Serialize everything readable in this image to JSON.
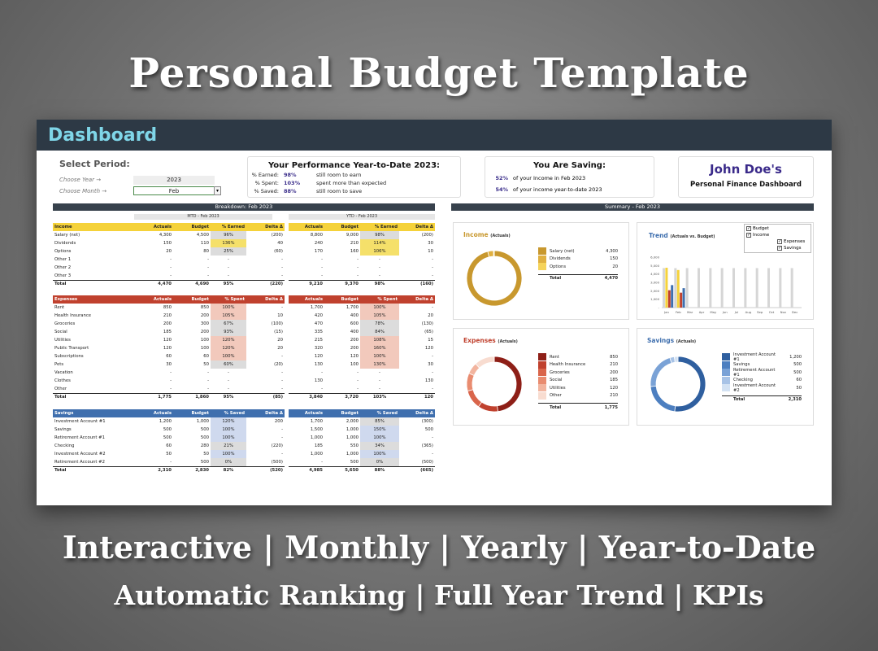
{
  "hero": {
    "title": "Personal Budget Template",
    "tag1": "Interactive | Monthly | Yearly | Year-to-Date",
    "tag2": "Automatic Ranking | Full Year Trend | KPIs"
  },
  "dashboard": {
    "title": "Dashboard"
  },
  "period": {
    "title": "Select Period:",
    "year_label": "Choose Year →",
    "year_value": "2023",
    "month_label": "Choose Month →",
    "month_value": "Feb",
    "dropdown_icon": "▾"
  },
  "performance": {
    "title": "Your Performance Year-to-Date 2023:",
    "rows": [
      {
        "k": "% Earned:",
        "v": "98%",
        "d": "still room to earn"
      },
      {
        "k": "% Spent:",
        "v": "103%",
        "d": "spent more than expected"
      },
      {
        "k": "% Saved:",
        "v": "88%",
        "d": "still room to save"
      }
    ]
  },
  "saving": {
    "title": "You Are Saving:",
    "rows": [
      {
        "v": "52%",
        "d": "of your Income in Feb 2023"
      },
      {
        "v": "54%",
        "d": "of your income year-to-date 2023"
      }
    ]
  },
  "profile": {
    "name": "John Doe's",
    "subtitle": "Personal Finance Dashboard"
  },
  "breakdown": {
    "title": "Breakdown: Feb 2023",
    "mtd": "MTD - Feb 2023",
    "ytd": "YTD - Feb 2023"
  },
  "summary": {
    "title": "Summary - Feb 2023"
  },
  "tables": {
    "income": {
      "mtd": {
        "head": [
          "Income",
          "Actuals",
          "Budget",
          "% Earned",
          "Delta Δ"
        ],
        "rows": [
          [
            "Salary (net)",
            "4,300",
            "4,500",
            "96%",
            "(200)"
          ],
          [
            "Dividends",
            "150",
            "110",
            "136%",
            "40"
          ],
          [
            "Options",
            "20",
            "80",
            "25%",
            "(60)"
          ],
          [
            "Other 1",
            "-",
            "-",
            "-",
            "-"
          ],
          [
            "Other 2",
            "-",
            "-",
            "-",
            "-"
          ],
          [
            "Other 3",
            "-",
            "-",
            "-",
            "-"
          ]
        ],
        "total": [
          "Total",
          "4,470",
          "4,690",
          "95%",
          "(220)"
        ]
      },
      "ytd": {
        "head": [
          "",
          "Actuals",
          "Budget",
          "% Earned",
          "Delta Δ"
        ],
        "rows": [
          [
            "",
            "8,800",
            "9,000",
            "98%",
            "(200)"
          ],
          [
            "",
            "240",
            "210",
            "114%",
            "30"
          ],
          [
            "",
            "170",
            "160",
            "106%",
            "10"
          ],
          [
            "",
            "-",
            "-",
            "-",
            "-"
          ],
          [
            "",
            "-",
            "-",
            "-",
            "-"
          ],
          [
            "",
            "-",
            "-",
            "-",
            "-"
          ]
        ],
        "total": [
          "Total",
          "9,210",
          "9,370",
          "98%",
          "(160)"
        ]
      }
    },
    "expenses": {
      "mtd": {
        "head": [
          "Expenses",
          "Actuals",
          "Budget",
          "% Spent",
          "Delta Δ"
        ],
        "rows": [
          [
            "Rent",
            "850",
            "850",
            "100%",
            "-"
          ],
          [
            "Health Insurance",
            "210",
            "200",
            "105%",
            "10"
          ],
          [
            "Groceries",
            "200",
            "300",
            "67%",
            "(100)"
          ],
          [
            "Social",
            "185",
            "200",
            "93%",
            "(15)"
          ],
          [
            "Utilities",
            "120",
            "100",
            "120%",
            "20"
          ],
          [
            "Public Transport",
            "120",
            "100",
            "120%",
            "20"
          ],
          [
            "Subscriptions",
            "60",
            "60",
            "100%",
            "-"
          ],
          [
            "Pets",
            "30",
            "50",
            "60%",
            "(20)"
          ],
          [
            "Vacation",
            "-",
            "-",
            "-",
            "-"
          ],
          [
            "Clothes",
            "-",
            "-",
            "-",
            "-"
          ],
          [
            "Other",
            "-",
            "-",
            "-",
            "-"
          ]
        ],
        "total": [
          "Total",
          "1,775",
          "1,860",
          "95%",
          "(85)"
        ]
      },
      "ytd": {
        "head": [
          "Expenses",
          "Actuals",
          "Budget",
          "% Spent",
          "Delta Δ"
        ],
        "rows": [
          [
            "",
            "1,700",
            "1,700",
            "100%",
            "-"
          ],
          [
            "",
            "420",
            "400",
            "105%",
            "20"
          ],
          [
            "",
            "470",
            "600",
            "78%",
            "(130)"
          ],
          [
            "",
            "335",
            "400",
            "84%",
            "(65)"
          ],
          [
            "",
            "215",
            "200",
            "108%",
            "15"
          ],
          [
            "",
            "320",
            "200",
            "160%",
            "120"
          ],
          [
            "",
            "120",
            "120",
            "100%",
            "-"
          ],
          [
            "",
            "130",
            "100",
            "130%",
            "30"
          ],
          [
            "",
            "-",
            "-",
            "-",
            "-"
          ],
          [
            "",
            "130",
            "-",
            "-",
            "130"
          ],
          [
            "",
            "-",
            "-",
            "-",
            "-"
          ]
        ],
        "total": [
          "Total",
          "3,840",
          "3,720",
          "103%",
          "120"
        ]
      }
    },
    "savings": {
      "mtd": {
        "head": [
          "Savings",
          "Actuals",
          "Budget",
          "% Saved",
          "Delta Δ"
        ],
        "rows": [
          [
            "Investment Account #1",
            "1,200",
            "1,000",
            "120%",
            "200"
          ],
          [
            "Savings",
            "500",
            "500",
            "100%",
            "-"
          ],
          [
            "Retirement Account #1",
            "500",
            "500",
            "100%",
            "-"
          ],
          [
            "Checking",
            "60",
            "280",
            "21%",
            "(220)"
          ],
          [
            "Investment Account #2",
            "50",
            "50",
            "100%",
            "-"
          ],
          [
            "Retirement Account #2",
            "-",
            "500",
            "0%",
            "(500)"
          ]
        ],
        "total": [
          "Total",
          "2,310",
          "2,830",
          "82%",
          "(520)"
        ]
      },
      "ytd": {
        "head": [
          "Savings",
          "Actuals",
          "Budget",
          "% Saved",
          "Delta Δ"
        ],
        "rows": [
          [
            "",
            "1,700",
            "2,000",
            "85%",
            "(300)"
          ],
          [
            "",
            "1,500",
            "1,000",
            "150%",
            "500"
          ],
          [
            "",
            "1,000",
            "1,000",
            "100%",
            "-"
          ],
          [
            "",
            "185",
            "550",
            "34%",
            "(365)"
          ],
          [
            "",
            "1,000",
            "1,000",
            "100%",
            "-"
          ],
          [
            "",
            "-",
            "500",
            "0%",
            "(500)"
          ]
        ],
        "total": [
          "Total",
          "4,985",
          "5,650",
          "88%",
          "(665)"
        ]
      }
    }
  },
  "charts": {
    "income": {
      "title": "Income",
      "note": "(Actuals)",
      "colors": [
        "#c8982e",
        "#e0b040",
        "#f5d35a"
      ],
      "items": [
        [
          "Salary (net)",
          "4,300"
        ],
        [
          "Dividends",
          "150"
        ],
        [
          "Options",
          "20"
        ]
      ],
      "total": [
        "Total",
        "4,470"
      ]
    },
    "expenses": {
      "title": "Expenses",
      "note": "(Actuals)",
      "colors": [
        "#8e1f17",
        "#c0412e",
        "#d9654b",
        "#e98c70",
        "#f2b49e",
        "#f8dcd0"
      ],
      "items": [
        [
          "Rent",
          "850"
        ],
        [
          "Health Insurance",
          "210"
        ],
        [
          "Groceries",
          "200"
        ],
        [
          "Social",
          "185"
        ],
        [
          "Utilities",
          "120"
        ],
        [
          "Other",
          "210"
        ]
      ],
      "total": [
        "Total",
        "1,775"
      ]
    },
    "savings": {
      "title": "Savings",
      "note": "(Actuals)",
      "colors": [
        "#2f5f9f",
        "#4d7fc0",
        "#7aa2d6",
        "#a8c3e6",
        "#d3e2f3"
      ],
      "items": [
        [
          "Investment Account #1",
          "1,200"
        ],
        [
          "Savings",
          "500"
        ],
        [
          "Retirement Account #1",
          "500"
        ],
        [
          "Checking",
          "60"
        ],
        [
          "Investment Account #2",
          "50"
        ]
      ],
      "total": [
        "Total",
        "2,310"
      ]
    },
    "trend": {
      "title": "Trend",
      "note": "(Actuals vs. Budget)",
      "legend": [
        {
          "label": "Budget",
          "checked": "✓"
        },
        {
          "label": "Income",
          "checked": "✓"
        },
        {
          "label": "Expenses",
          "checked": "✓"
        },
        {
          "label": "Savings",
          "checked": "✓"
        }
      ],
      "yticks": [
        "6,000",
        "5,000",
        "4,000",
        "3,000",
        "2,000",
        "1,000",
        "-"
      ],
      "months": [
        "Jan",
        "Feb",
        "Mar",
        "Apr",
        "May",
        "Jun",
        "Jul",
        "Aug",
        "Sep",
        "Oct",
        "Nov",
        "Dec"
      ]
    }
  },
  "chart_data": [
    {
      "type": "pie",
      "title": "Income",
      "categories": [
        "Salary (net)",
        "Dividends",
        "Options"
      ],
      "values": [
        4300,
        150,
        20
      ]
    },
    {
      "type": "pie",
      "title": "Expenses",
      "categories": [
        "Rent",
        "Health Insurance",
        "Groceries",
        "Social",
        "Utilities",
        "Other"
      ],
      "values": [
        850,
        210,
        200,
        185,
        120,
        210
      ]
    },
    {
      "type": "pie",
      "title": "Savings",
      "categories": [
        "Investment Account #1",
        "Savings",
        "Retirement Account #1",
        "Checking",
        "Investment Account #2"
      ],
      "values": [
        1200,
        500,
        500,
        60,
        50
      ]
    },
    {
      "type": "bar",
      "title": "Trend",
      "categories": [
        "Jan",
        "Feb",
        "Mar",
        "Apr",
        "May",
        "Jun",
        "Jul",
        "Aug",
        "Sep",
        "Oct",
        "Nov",
        "Dec"
      ],
      "ylim": [
        0,
        6000
      ],
      "series": [
        {
          "name": "Budget",
          "values": [
            4700,
            4690,
            4700,
            4700,
            4700,
            4700,
            4700,
            4700,
            4700,
            4700,
            4700,
            4700
          ]
        },
        {
          "name": "Income",
          "values": [
            4740,
            4470,
            null,
            null,
            null,
            null,
            null,
            null,
            null,
            null,
            null,
            null
          ]
        },
        {
          "name": "Expenses",
          "values": [
            2065,
            1775,
            null,
            null,
            null,
            null,
            null,
            null,
            null,
            null,
            null,
            null
          ]
        },
        {
          "name": "Savings",
          "values": [
            2675,
            2310,
            null,
            null,
            null,
            null,
            null,
            null,
            null,
            null,
            null,
            null
          ]
        }
      ]
    }
  ]
}
